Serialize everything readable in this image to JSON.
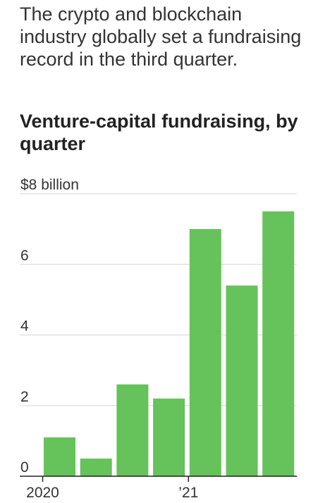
{
  "header": {
    "subtitle": "The crypto and blockchain industry globally set a fundraising record in the third quarter.",
    "title": "Venture-capital fundraising, by quarter"
  },
  "chart_data": {
    "type": "bar",
    "title": "Venture-capital fundraising, by quarter",
    "subtitle": "The crypto and blockchain industry globally set a fundraising record in the third quarter.",
    "categories": [
      "2020 Q1",
      "2020 Q2",
      "2020 Q3",
      "2020 Q4",
      "2021 Q1",
      "2021 Q2",
      "2021 Q3"
    ],
    "values": [
      1.1,
      0.5,
      2.6,
      2.2,
      7.0,
      5.4,
      7.5
    ],
    "ylim": [
      0,
      8
    ],
    "y_ticks": [
      {
        "value": 0,
        "label": "0"
      },
      {
        "value": 2,
        "label": "2"
      },
      {
        "value": 4,
        "label": "4"
      },
      {
        "value": 6,
        "label": "6"
      },
      {
        "value": 8,
        "label": "$8 billion"
      }
    ],
    "x_tick_labels": [
      {
        "index": 0,
        "label": "2020"
      },
      {
        "index": 4,
        "label": "’21"
      }
    ],
    "grid": true,
    "bar_color": "#66c25a"
  }
}
